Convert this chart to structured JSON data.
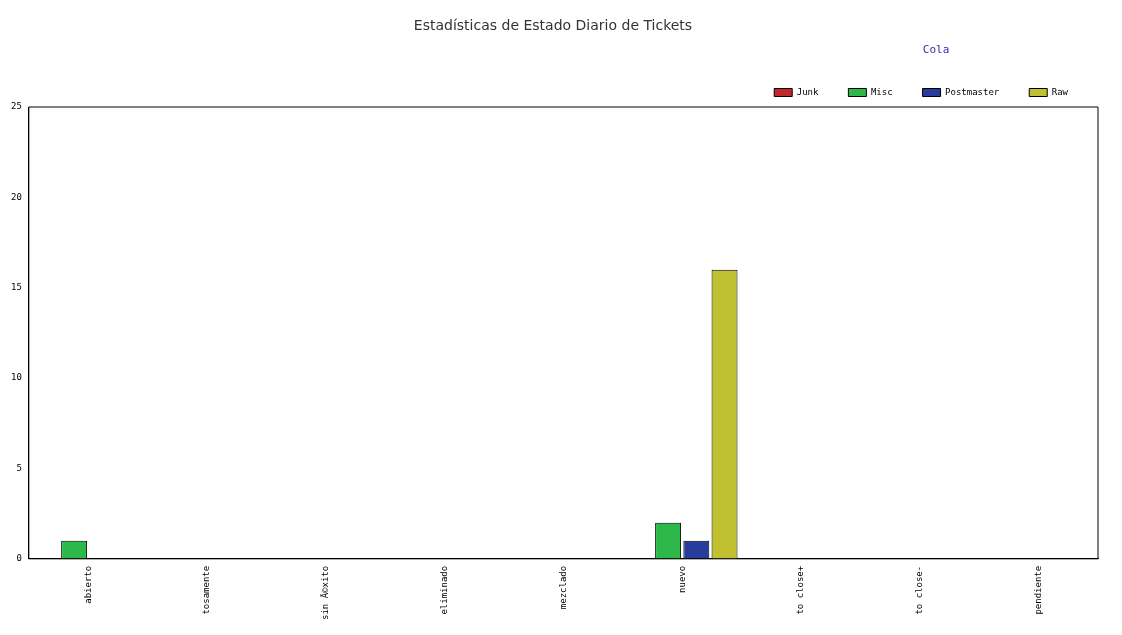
{
  "chart_data": {
    "type": "bar",
    "title": "Estadísticas de Estado Diario de Tickets",
    "legend_title": "Cola",
    "legend": "top right",
    "grid": false,
    "categories": [
      "abierto",
      "tosamente",
      "sin Ã©xito",
      "eliminado",
      "mezclado",
      "nuevo",
      "to close+",
      "to close-",
      "pendiente"
    ],
    "series": [
      {
        "name": "Junk",
        "color": "#c0282c",
        "values": [
          0,
          0,
          0,
          0,
          0,
          0,
          0,
          0,
          0
        ]
      },
      {
        "name": "Misc",
        "color": "#2db84a",
        "values": [
          1,
          0,
          0,
          0,
          0,
          2,
          0,
          0,
          0
        ]
      },
      {
        "name": "Postmaster",
        "color": "#283c9c",
        "values": [
          0,
          0,
          0,
          0,
          0,
          1,
          0,
          0,
          0
        ]
      },
      {
        "name": "Raw",
        "color": "#c0c030",
        "values": [
          0,
          0,
          0,
          0,
          0,
          16,
          0,
          0,
          0
        ]
      }
    ],
    "ylim": [
      0,
      25
    ],
    "yticks": [
      0,
      5,
      10,
      15,
      20,
      25
    ]
  }
}
